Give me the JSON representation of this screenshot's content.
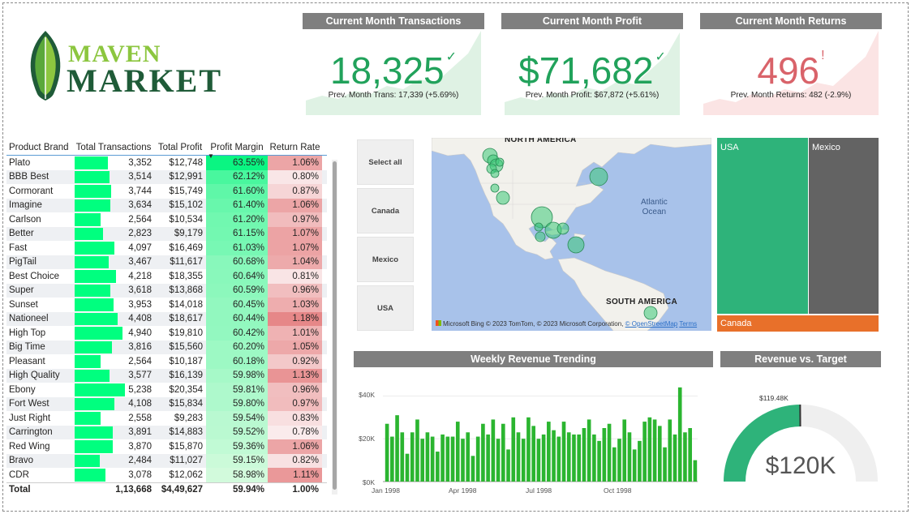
{
  "brand": {
    "word1": "MAVEN",
    "word2": "MARKET"
  },
  "kpis": [
    {
      "title": "Current Month Transactions",
      "value": "18,325",
      "indicator": "✓",
      "sub": "Prev. Month Trans: 17,339 (+5.69%)",
      "color": "#21a25b",
      "bg": "#dff2e4",
      "status": "up"
    },
    {
      "title": "Current Month Profit",
      "value": "$71,682",
      "indicator": "✓",
      "sub": "Prev. Month Profit: $67,872 (+5.61%)",
      "color": "#21a25b",
      "bg": "#dff2e4",
      "status": "up"
    },
    {
      "title": "Current Month Returns",
      "value": "496",
      "indicator": "!",
      "sub": "Prev. Month Returns: 482 (-2.9%)",
      "color": "#d9636a",
      "bg": "#fbe4e4",
      "status": "warning"
    }
  ],
  "table": {
    "headers": [
      "Product Brand",
      "Total Transactions",
      "Total Profit",
      "Profit Margin",
      "Return Rate"
    ],
    "sorted_column": "Profit Margin",
    "rows": [
      {
        "brand": "Plato",
        "trans": "3,352",
        "profit": "$12,748",
        "margin": "63.55%",
        "ret": "1.06%",
        "trans_n": 3352,
        "margin_n": 63.55,
        "ret_n": 1.06
      },
      {
        "brand": "BBB Best",
        "trans": "3,514",
        "profit": "$12,991",
        "margin": "62.12%",
        "ret": "0.80%",
        "trans_n": 3514,
        "margin_n": 62.12,
        "ret_n": 0.8
      },
      {
        "brand": "Cormorant",
        "trans": "3,744",
        "profit": "$15,749",
        "margin": "61.60%",
        "ret": "0.87%",
        "trans_n": 3744,
        "margin_n": 61.6,
        "ret_n": 0.87
      },
      {
        "brand": "Imagine",
        "trans": "3,634",
        "profit": "$15,102",
        "margin": "61.40%",
        "ret": "1.06%",
        "trans_n": 3634,
        "margin_n": 61.4,
        "ret_n": 1.06
      },
      {
        "brand": "Carlson",
        "trans": "2,564",
        "profit": "$10,534",
        "margin": "61.20%",
        "ret": "0.97%",
        "trans_n": 2564,
        "margin_n": 61.2,
        "ret_n": 0.97
      },
      {
        "brand": "Better",
        "trans": "2,823",
        "profit": "$9,179",
        "margin": "61.15%",
        "ret": "1.07%",
        "trans_n": 2823,
        "margin_n": 61.15,
        "ret_n": 1.07
      },
      {
        "brand": "Fast",
        "trans": "4,097",
        "profit": "$16,469",
        "margin": "61.03%",
        "ret": "1.07%",
        "trans_n": 4097,
        "margin_n": 61.03,
        "ret_n": 1.07
      },
      {
        "brand": "PigTail",
        "trans": "3,467",
        "profit": "$11,617",
        "margin": "60.68%",
        "ret": "1.04%",
        "trans_n": 3467,
        "margin_n": 60.68,
        "ret_n": 1.04
      },
      {
        "brand": "Best Choice",
        "trans": "4,218",
        "profit": "$18,355",
        "margin": "60.64%",
        "ret": "0.81%",
        "trans_n": 4218,
        "margin_n": 60.64,
        "ret_n": 0.81
      },
      {
        "brand": "Super",
        "trans": "3,618",
        "profit": "$13,868",
        "margin": "60.59%",
        "ret": "0.96%",
        "trans_n": 3618,
        "margin_n": 60.59,
        "ret_n": 0.96
      },
      {
        "brand": "Sunset",
        "trans": "3,953",
        "profit": "$14,018",
        "margin": "60.45%",
        "ret": "1.03%",
        "trans_n": 3953,
        "margin_n": 60.45,
        "ret_n": 1.03
      },
      {
        "brand": "Nationeel",
        "trans": "4,408",
        "profit": "$18,617",
        "margin": "60.44%",
        "ret": "1.18%",
        "trans_n": 4408,
        "margin_n": 60.44,
        "ret_n": 1.18
      },
      {
        "brand": "High Top",
        "trans": "4,940",
        "profit": "$19,810",
        "margin": "60.42%",
        "ret": "1.01%",
        "trans_n": 4940,
        "margin_n": 60.42,
        "ret_n": 1.01
      },
      {
        "brand": "Big Time",
        "trans": "3,816",
        "profit": "$15,560",
        "margin": "60.20%",
        "ret": "1.05%",
        "trans_n": 3816,
        "margin_n": 60.2,
        "ret_n": 1.05
      },
      {
        "brand": "Pleasant",
        "trans": "2,564",
        "profit": "$10,187",
        "margin": "60.18%",
        "ret": "0.92%",
        "trans_n": 2564,
        "margin_n": 60.18,
        "ret_n": 0.92
      },
      {
        "brand": "High Quality",
        "trans": "3,577",
        "profit": "$16,139",
        "margin": "59.98%",
        "ret": "1.13%",
        "trans_n": 3577,
        "margin_n": 59.98,
        "ret_n": 1.13
      },
      {
        "brand": "Ebony",
        "trans": "5,238",
        "profit": "$20,354",
        "margin": "59.81%",
        "ret": "0.96%",
        "trans_n": 5238,
        "margin_n": 59.81,
        "ret_n": 0.96
      },
      {
        "brand": "Fort West",
        "trans": "4,108",
        "profit": "$15,834",
        "margin": "59.80%",
        "ret": "0.97%",
        "trans_n": 4108,
        "margin_n": 59.8,
        "ret_n": 0.97
      },
      {
        "brand": "Just Right",
        "trans": "2,558",
        "profit": "$9,283",
        "margin": "59.54%",
        "ret": "0.83%",
        "trans_n": 2558,
        "margin_n": 59.54,
        "ret_n": 0.83
      },
      {
        "brand": "Carrington",
        "trans": "3,891",
        "profit": "$14,883",
        "margin": "59.52%",
        "ret": "0.78%",
        "trans_n": 3891,
        "margin_n": 59.52,
        "ret_n": 0.78
      },
      {
        "brand": "Red Wing",
        "trans": "3,870",
        "profit": "$15,870",
        "margin": "59.36%",
        "ret": "1.06%",
        "trans_n": 3870,
        "margin_n": 59.36,
        "ret_n": 1.06
      },
      {
        "brand": "Bravo",
        "trans": "2,484",
        "profit": "$11,027",
        "margin": "59.15%",
        "ret": "0.82%",
        "trans_n": 2484,
        "margin_n": 59.15,
        "ret_n": 0.82
      },
      {
        "brand": "CDR",
        "trans": "3,078",
        "profit": "$12,062",
        "margin": "58.98%",
        "ret": "1.11%",
        "trans_n": 3078,
        "margin_n": 58.98,
        "ret_n": 1.11
      }
    ],
    "total": {
      "label": "Total",
      "trans": "1,13,668",
      "profit": "$4,49,627",
      "margin": "59.94%",
      "ret": "1.00%"
    }
  },
  "slicer": {
    "items": [
      "Select all",
      "Canada",
      "Mexico",
      "USA"
    ]
  },
  "map": {
    "labels": [
      "NORTH AMERICA",
      "SOUTH AMERICA"
    ],
    "ocean": [
      "Atlantic",
      "Ocean"
    ],
    "credit_brand": "Microsoft Bing",
    "credit": "© 2023 TomTom, © 2023 Microsoft Corporation,",
    "credit_osm": "© OpenStreetMap",
    "credit_terms": "Terms"
  },
  "treemap": {
    "usa": "USA",
    "mexico": "Mexico",
    "canada": "Canada",
    "colors": {
      "usa": "#2eb37a",
      "mexico": "#636363",
      "canada": "#e8702a"
    }
  },
  "weekly": {
    "title": "Weekly Revenue Trending"
  },
  "gauge": {
    "title": "Revenue vs. Target",
    "target_label": "$119.48K",
    "value_label": "$120K",
    "value_k": 120,
    "target_k": 119.48,
    "max_k": 240,
    "color": "#2eb37a"
  },
  "chart_data": {
    "type": "bar",
    "title": "Weekly Revenue Trending",
    "x_ticks": [
      "Jan 1998",
      "Apr 1998",
      "Jul 1998",
      "Oct 1998"
    ],
    "y_ticks": [
      "$0K",
      "$20K",
      "$40K"
    ],
    "ylim": [
      0,
      50000
    ],
    "color": "#2bb530",
    "values": [
      27000,
      21000,
      31000,
      23000,
      13000,
      23000,
      29000,
      20000,
      23000,
      21000,
      14000,
      22000,
      21000,
      21000,
      28000,
      20000,
      23000,
      12000,
      21000,
      27000,
      22000,
      29000,
      20000,
      27000,
      15000,
      30000,
      23000,
      20000,
      30000,
      26000,
      20000,
      22000,
      28000,
      24000,
      21000,
      28000,
      23000,
      22000,
      22000,
      25000,
      29000,
      22000,
      19000,
      25000,
      27000,
      16000,
      20000,
      29000,
      23000,
      15000,
      19000,
      28000,
      30000,
      29000,
      26000,
      16000,
      29000,
      22000,
      44000,
      23000,
      25000,
      10000
    ]
  }
}
